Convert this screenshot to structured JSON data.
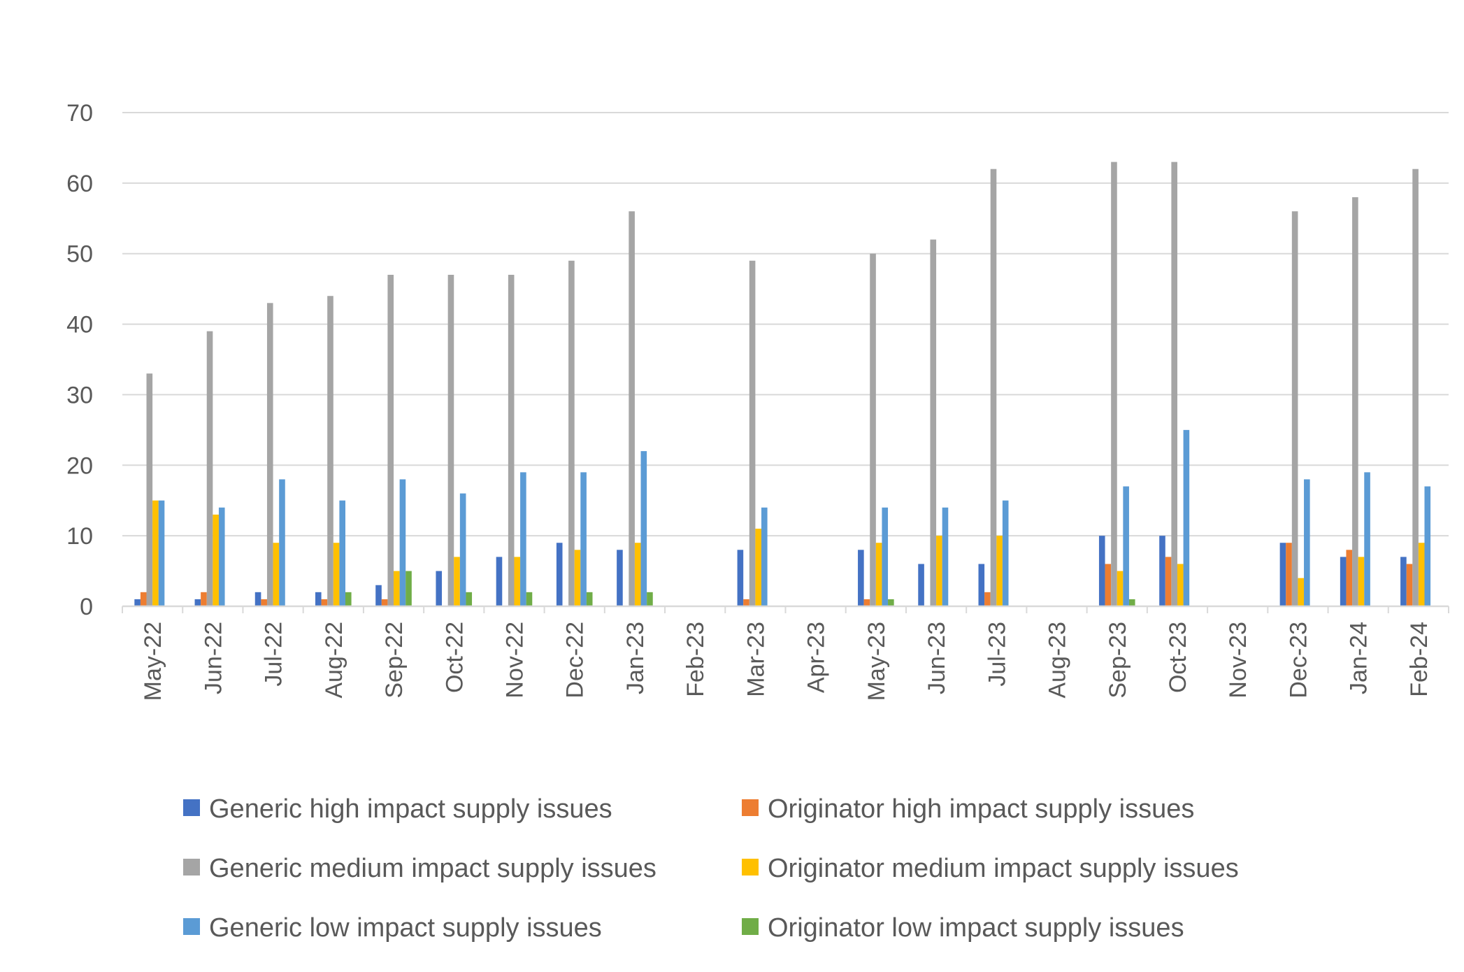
{
  "chart_data": {
    "type": "bar",
    "title": "",
    "xlabel": "",
    "ylabel": "",
    "ylim": [
      0,
      70
    ],
    "yticks": [
      0,
      10,
      20,
      30,
      40,
      50,
      60,
      70
    ],
    "grid": "horizontal",
    "legend_position": "bottom",
    "categories": [
      "May-22",
      "Jun-22",
      "Jul-22",
      "Aug-22",
      "Sep-22",
      "Oct-22",
      "Nov-22",
      "Dec-22",
      "Jan-23",
      "Feb-23",
      "Mar-23",
      "Apr-23",
      "May-23",
      "Jun-23",
      "Jul-23",
      "Aug-23",
      "Sep-23",
      "Oct-23",
      "Nov-23",
      "Dec-23",
      "Jan-24",
      "Feb-24"
    ],
    "series": [
      {
        "name": "Generic high impact supply issues",
        "color": "#4472C4",
        "values": [
          1,
          1,
          2,
          2,
          3,
          5,
          7,
          9,
          8,
          null,
          8,
          null,
          8,
          6,
          6,
          null,
          10,
          10,
          null,
          9,
          7,
          7
        ]
      },
      {
        "name": "Originator high impact supply issues",
        "color": "#ED7D31",
        "values": [
          2,
          2,
          1,
          1,
          1,
          null,
          null,
          null,
          null,
          null,
          1,
          null,
          1,
          null,
          2,
          null,
          6,
          7,
          null,
          9,
          8,
          6
        ]
      },
      {
        "name": "Generic medium impact supply issues",
        "color": "#A5A5A5",
        "values": [
          33,
          39,
          43,
          44,
          47,
          47,
          47,
          49,
          56,
          null,
          49,
          null,
          50,
          52,
          62,
          null,
          63,
          63,
          null,
          56,
          58,
          62
        ]
      },
      {
        "name": "Originator medium impact supply issues",
        "color": "#FFC000",
        "values": [
          15,
          13,
          9,
          9,
          5,
          7,
          7,
          8,
          9,
          null,
          11,
          null,
          9,
          10,
          10,
          null,
          5,
          6,
          null,
          4,
          7,
          9
        ]
      },
      {
        "name": "Generic low impact supply issues",
        "color": "#5B9BD5",
        "values": [
          15,
          14,
          18,
          15,
          18,
          16,
          19,
          19,
          22,
          null,
          14,
          null,
          14,
          14,
          15,
          null,
          17,
          25,
          null,
          18,
          19,
          17
        ]
      },
      {
        "name": "Originator low impact supply issues",
        "color": "#70AD47",
        "values": [
          null,
          null,
          null,
          2,
          5,
          2,
          2,
          2,
          2,
          null,
          null,
          null,
          1,
          null,
          null,
          null,
          1,
          null,
          null,
          null,
          null,
          null
        ]
      }
    ]
  }
}
